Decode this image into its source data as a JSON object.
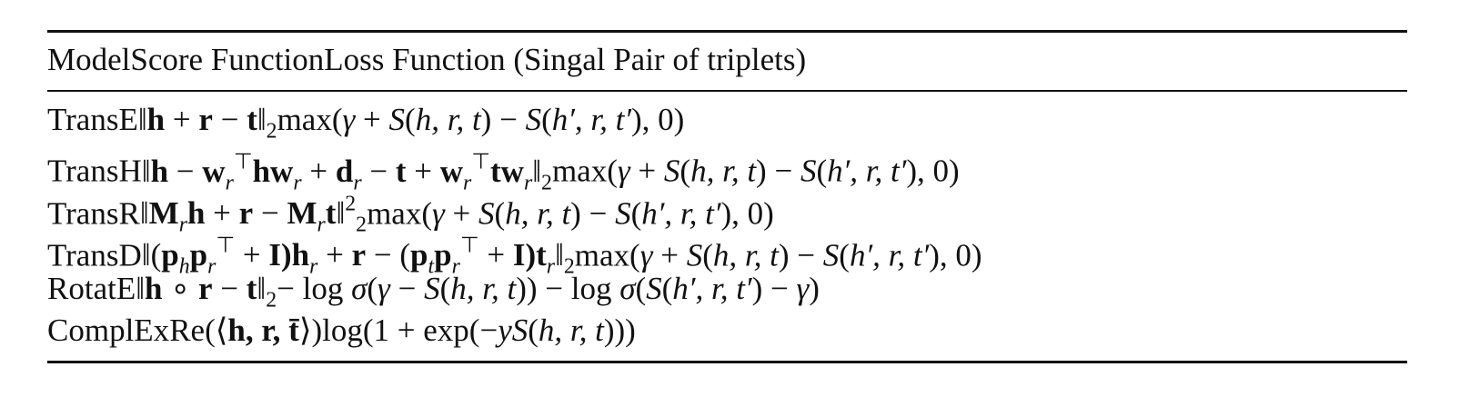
{
  "table": {
    "header": [
      "Model",
      "Score Function",
      "Loss Function (Singal Pair of triplets)"
    ],
    "rows": [
      [
        "TransE",
        [
          "‖",
          {
            "t": "h",
            "s": "b"
          },
          " + ",
          {
            "t": "r",
            "s": "b"
          },
          " − ",
          {
            "t": "t",
            "s": "b"
          },
          "‖",
          {
            "t": "2",
            "s": "sub"
          }
        ],
        [
          "max(",
          {
            "t": "γ",
            "s": "i"
          },
          " + ",
          {
            "t": "S",
            "s": "i"
          },
          "(",
          {
            "t": "h, r, t",
            "s": "i"
          },
          ") − ",
          {
            "t": "S",
            "s": "i"
          },
          "(",
          {
            "t": "h′, r, t′",
            "s": "i"
          },
          "), 0)"
        ]
      ],
      [
        "TransH",
        [
          "‖",
          {
            "t": "h",
            "s": "b"
          },
          " − ",
          {
            "t": "w",
            "s": "b"
          },
          {
            "t": "r",
            "s": "isub"
          },
          {
            "t": "⊤",
            "s": "sup"
          },
          {
            "t": "hw",
            "s": "b"
          },
          {
            "t": "r",
            "s": "isub"
          },
          " + ",
          {
            "t": "d",
            "s": "b"
          },
          {
            "t": "r",
            "s": "isub"
          },
          " − ",
          {
            "t": "t",
            "s": "b"
          },
          " + ",
          {
            "t": "w",
            "s": "b"
          },
          {
            "t": "r",
            "s": "isub"
          },
          {
            "t": "⊤",
            "s": "sup"
          },
          {
            "t": "tw",
            "s": "b"
          },
          {
            "t": "r",
            "s": "isub"
          },
          "‖",
          {
            "t": "2",
            "s": "sub"
          }
        ],
        [
          "max(",
          {
            "t": "γ",
            "s": "i"
          },
          " + ",
          {
            "t": "S",
            "s": "i"
          },
          "(",
          {
            "t": "h, r, t",
            "s": "i"
          },
          ") − ",
          {
            "t": "S",
            "s": "i"
          },
          "(",
          {
            "t": "h′, r, t′",
            "s": "i"
          },
          "), 0)"
        ]
      ],
      [
        "TransR",
        [
          "‖",
          {
            "t": "M",
            "s": "b"
          },
          {
            "t": "r",
            "s": "isub"
          },
          {
            "t": "h",
            "s": "b"
          },
          " + ",
          {
            "t": "r",
            "s": "b"
          },
          " − ",
          {
            "t": "M",
            "s": "b"
          },
          {
            "t": "r",
            "s": "isub"
          },
          {
            "t": "t",
            "s": "b"
          },
          "‖",
          {
            "t": "2",
            "s": "sup"
          },
          {
            "t": "2",
            "s": "sub"
          }
        ],
        [
          "max(",
          {
            "t": "γ",
            "s": "i"
          },
          " + ",
          {
            "t": "S",
            "s": "i"
          },
          "(",
          {
            "t": "h, r, t",
            "s": "i"
          },
          ") − ",
          {
            "t": "S",
            "s": "i"
          },
          "(",
          {
            "t": "h′, r, t′",
            "s": "i"
          },
          "), 0)"
        ]
      ],
      [
        "TransD",
        [
          "‖(",
          {
            "t": "p",
            "s": "b"
          },
          {
            "t": "h",
            "s": "isub"
          },
          {
            "t": "p",
            "s": "b"
          },
          {
            "t": "r",
            "s": "isub"
          },
          {
            "t": "⊤",
            "s": "sup"
          },
          " + ",
          {
            "t": "I)h",
            "s": "b"
          },
          {
            "t": "r",
            "s": "isub"
          },
          " + ",
          {
            "t": "r",
            "s": "b"
          },
          " − (",
          {
            "t": "p",
            "s": "b"
          },
          {
            "t": "t",
            "s": "isub"
          },
          {
            "t": "p",
            "s": "b"
          },
          {
            "t": "r",
            "s": "isub"
          },
          {
            "t": "⊤",
            "s": "sup"
          },
          " + ",
          {
            "t": "I)t",
            "s": "b"
          },
          {
            "t": "r",
            "s": "isub"
          },
          "‖",
          {
            "t": "2",
            "s": "sub"
          }
        ],
        [
          "max(",
          {
            "t": "γ",
            "s": "i"
          },
          " + ",
          {
            "t": "S",
            "s": "i"
          },
          "(",
          {
            "t": "h, r, t",
            "s": "i"
          },
          ") − ",
          {
            "t": "S",
            "s": "i"
          },
          "(",
          {
            "t": "h′, r, t′",
            "s": "i"
          },
          "), 0)"
        ]
      ],
      [
        "RotatE",
        [
          "‖",
          {
            "t": "h",
            "s": "b"
          },
          " ∘ ",
          {
            "t": "r",
            "s": "b"
          },
          " − ",
          {
            "t": "t",
            "s": "b"
          },
          "‖",
          {
            "t": "2",
            "s": "sub"
          }
        ],
        [
          "− log ",
          {
            "t": "σ",
            "s": "i"
          },
          "(",
          {
            "t": "γ",
            "s": "i"
          },
          " − ",
          {
            "t": "S",
            "s": "i"
          },
          "(",
          {
            "t": "h, r, t",
            "s": "i"
          },
          ")) − log ",
          {
            "t": "σ",
            "s": "i"
          },
          "(",
          {
            "t": "S",
            "s": "i"
          },
          "(",
          {
            "t": "h′, r, t′",
            "s": "i"
          },
          ") − ",
          {
            "t": "γ",
            "s": "i"
          },
          ")"
        ]
      ],
      [
        "ComplEx",
        [
          "Re(⟨",
          {
            "t": "h, r, t̄",
            "s": "b"
          },
          "⟩)"
        ],
        [
          "log(1 + exp(−",
          {
            "t": "yS",
            "s": "i"
          },
          "(",
          {
            "t": "h, r, t",
            "s": "i"
          },
          ")))"
        ]
      ]
    ]
  }
}
